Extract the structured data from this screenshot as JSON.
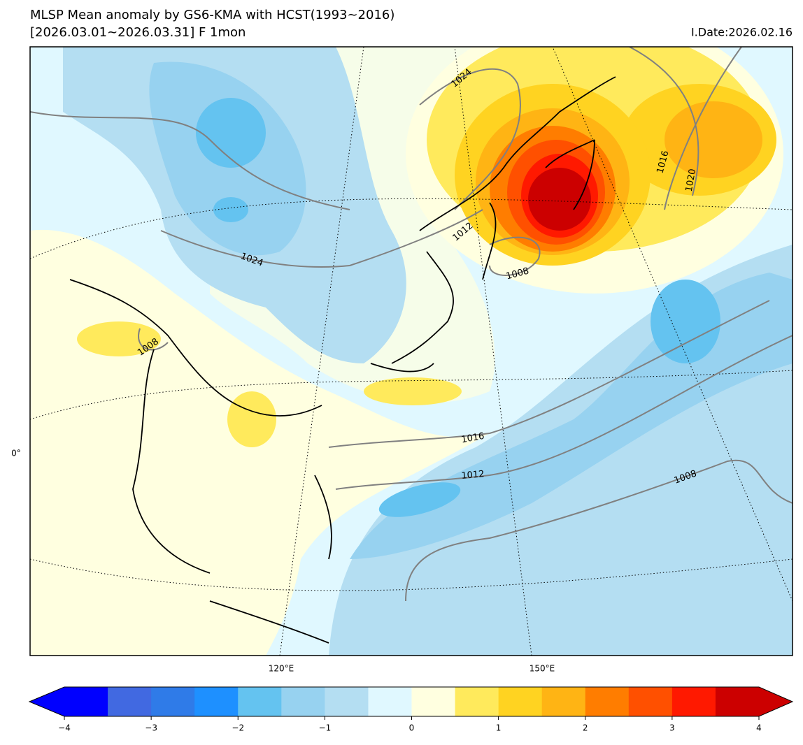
{
  "header": {
    "title_line1": "MLSP Mean anomaly by GS6-KMA with HCST(1993~2016)",
    "title_line2": "[2026.03.01~2026.03.31] F 1mon",
    "init_date": "I.Date:2026.02.16"
  },
  "map": {
    "lon_labels": [
      "120°E",
      "150°E"
    ],
    "lat_labels": [
      "0°"
    ],
    "contour_labels": [
      1024,
      1016,
      1020,
      1012,
      1008,
      1024,
      1008,
      1016,
      1012,
      1008
    ]
  },
  "colorbar": {
    "ticks": [
      {
        "value": -4,
        "label": "−4"
      },
      {
        "value": -3,
        "label": "−3"
      },
      {
        "value": -2,
        "label": "−2"
      },
      {
        "value": -1,
        "label": "−1"
      },
      0,
      1,
      2,
      3,
      4
    ],
    "under_color": "#0000ff",
    "over_color": "#cc0000",
    "colors": [
      "#0000ff",
      "#4169e1",
      "#2f7be8",
      "#1e90ff",
      "#64c3f0",
      "#97d2f0",
      "#b4def2",
      "#e0f8ff",
      "#ffffe0",
      "#ffea5c",
      "#ffd321",
      "#ffb414",
      "#ff7d00",
      "#ff5000",
      "#ff1900",
      "#cc0000"
    ]
  }
}
